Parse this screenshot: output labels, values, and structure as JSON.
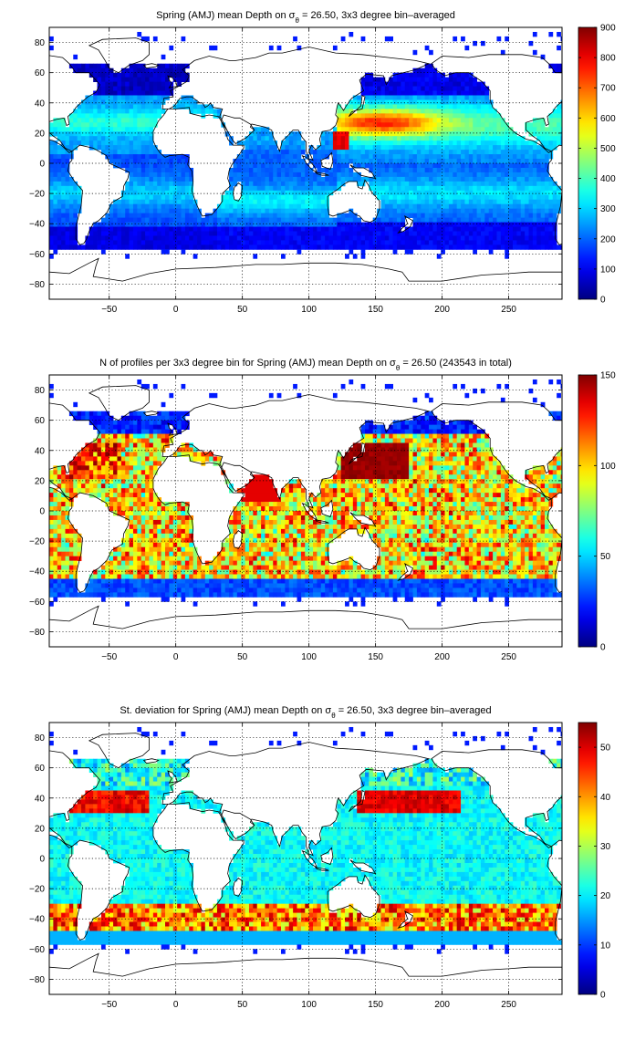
{
  "figure": {
    "background": "#ffffff",
    "colormap": "jet"
  },
  "chart_data": [
    {
      "type": "heatmap",
      "title": "Spring (AMJ) mean Depth on σθ = 26.50, 3x3 degree bin–averaged",
      "title_parts": {
        "pre": "Spring (AMJ) mean Depth on σ",
        "sub": "θ",
        "post": " = 26.50, 3x3 degree bin–averaged"
      },
      "xlabel": "",
      "ylabel": "",
      "xlim": [
        -95,
        290
      ],
      "ylim": [
        -90,
        90
      ],
      "xticks": [
        -50,
        0,
        50,
        100,
        150,
        200,
        250
      ],
      "yticks": [
        -80,
        -60,
        -40,
        -20,
        0,
        20,
        40,
        60,
        80
      ],
      "grid": true,
      "colorbar": {
        "min": 0,
        "max": 900,
        "ticks": [
          0,
          100,
          200,
          300,
          400,
          500,
          600,
          700,
          800,
          900
        ]
      },
      "bin_degrees": 3,
      "field": "mean_depth"
    },
    {
      "type": "heatmap",
      "title": "N of profiles per 3x3 degree bin for Spring (AMJ) mean Depth on σθ = 26.50 (243543 in total)",
      "title_parts": {
        "pre": "N of profiles per 3x3 degree bin for Spring (AMJ) mean Depth on σ",
        "sub": "θ",
        "post": " = 26.50 (243543 in total)"
      },
      "xlabel": "",
      "ylabel": "",
      "xlim": [
        -95,
        290
      ],
      "ylim": [
        -90,
        90
      ],
      "xticks": [
        -50,
        0,
        50,
        100,
        150,
        200,
        250
      ],
      "yticks": [
        -80,
        -60,
        -40,
        -20,
        0,
        20,
        40,
        60,
        80
      ],
      "grid": true,
      "colorbar": {
        "min": 0,
        "max": 150,
        "ticks": [
          0,
          50,
          100,
          150
        ]
      },
      "bin_degrees": 3,
      "total_profiles": 243543,
      "field": "profile_count"
    },
    {
      "type": "heatmap",
      "title": "St. deviation for Spring (AMJ) mean Depth on σθ = 26.50, 3x3 degree bin–averaged",
      "title_parts": {
        "pre": "St. deviation for Spring (AMJ) mean Depth on σ",
        "sub": "θ",
        "post": " = 26.50, 3x3 degree bin–averaged"
      },
      "xlabel": "",
      "ylabel": "",
      "xlim": [
        -95,
        290
      ],
      "ylim": [
        -90,
        90
      ],
      "xticks": [
        -50,
        0,
        50,
        100,
        150,
        200,
        250
      ],
      "yticks": [
        -80,
        -60,
        -40,
        -20,
        0,
        20,
        40,
        60,
        80
      ],
      "grid": true,
      "colorbar": {
        "min": 0,
        "max": 55,
        "ticks": [
          0,
          10,
          20,
          30,
          40,
          50
        ]
      },
      "bin_degrees": 3,
      "field": "std_depth"
    }
  ]
}
